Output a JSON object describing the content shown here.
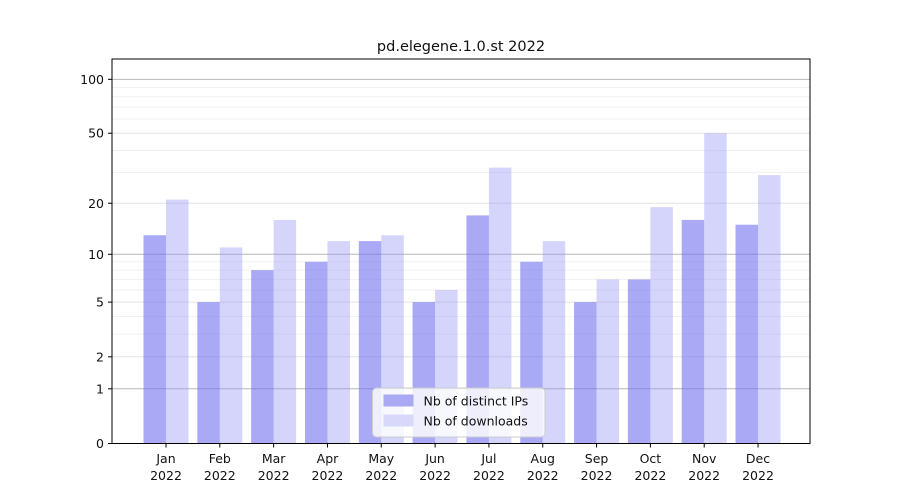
{
  "chart_data": {
    "type": "bar",
    "title": "pd.elegene.1.0.st 2022",
    "categories": [
      "Jan",
      "Feb",
      "Mar",
      "Apr",
      "May",
      "Jun",
      "Jul",
      "Aug",
      "Sep",
      "Oct",
      "Nov",
      "Dec"
    ],
    "category_year": "2022",
    "series": [
      {
        "name": "Nb of distinct IPs",
        "values": [
          13,
          5,
          8,
          9,
          12,
          5,
          17,
          9,
          5,
          7,
          16,
          15
        ],
        "bar_color": "rgba(116,116,240,0.62)",
        "legend_color": "#a9a9f4"
      },
      {
        "name": "Nb of downloads",
        "values": [
          21,
          11,
          16,
          12,
          13,
          6,
          32,
          12,
          7,
          19,
          50,
          29
        ],
        "bar_color": "rgba(150,150,245,0.40)",
        "legend_color": "#d8d8fa"
      }
    ],
    "yscale": "log1p",
    "y_tick_values": [
      100,
      50,
      20,
      10,
      5,
      2,
      1,
      0
    ],
    "y_decade_gridlines": [
      1,
      10,
      100
    ],
    "y_mid_gridlines": [
      2,
      5,
      20,
      50
    ],
    "y_minor_gridlines": [
      3,
      4,
      6,
      7,
      8,
      9,
      30,
      40,
      60,
      70,
      80,
      90
    ],
    "ylim": [
      0,
      130
    ],
    "grid": "on",
    "legend_position": "lower center (inside plot)",
    "colors": {
      "axis": "#000000",
      "decade_grid": "#b8b8b8",
      "mid_grid": "#e3e3e3",
      "minor_grid": "#f1f1f1",
      "legend_border": "#cccccc",
      "legend_bg": "#ffffff",
      "text": "#111111"
    }
  }
}
